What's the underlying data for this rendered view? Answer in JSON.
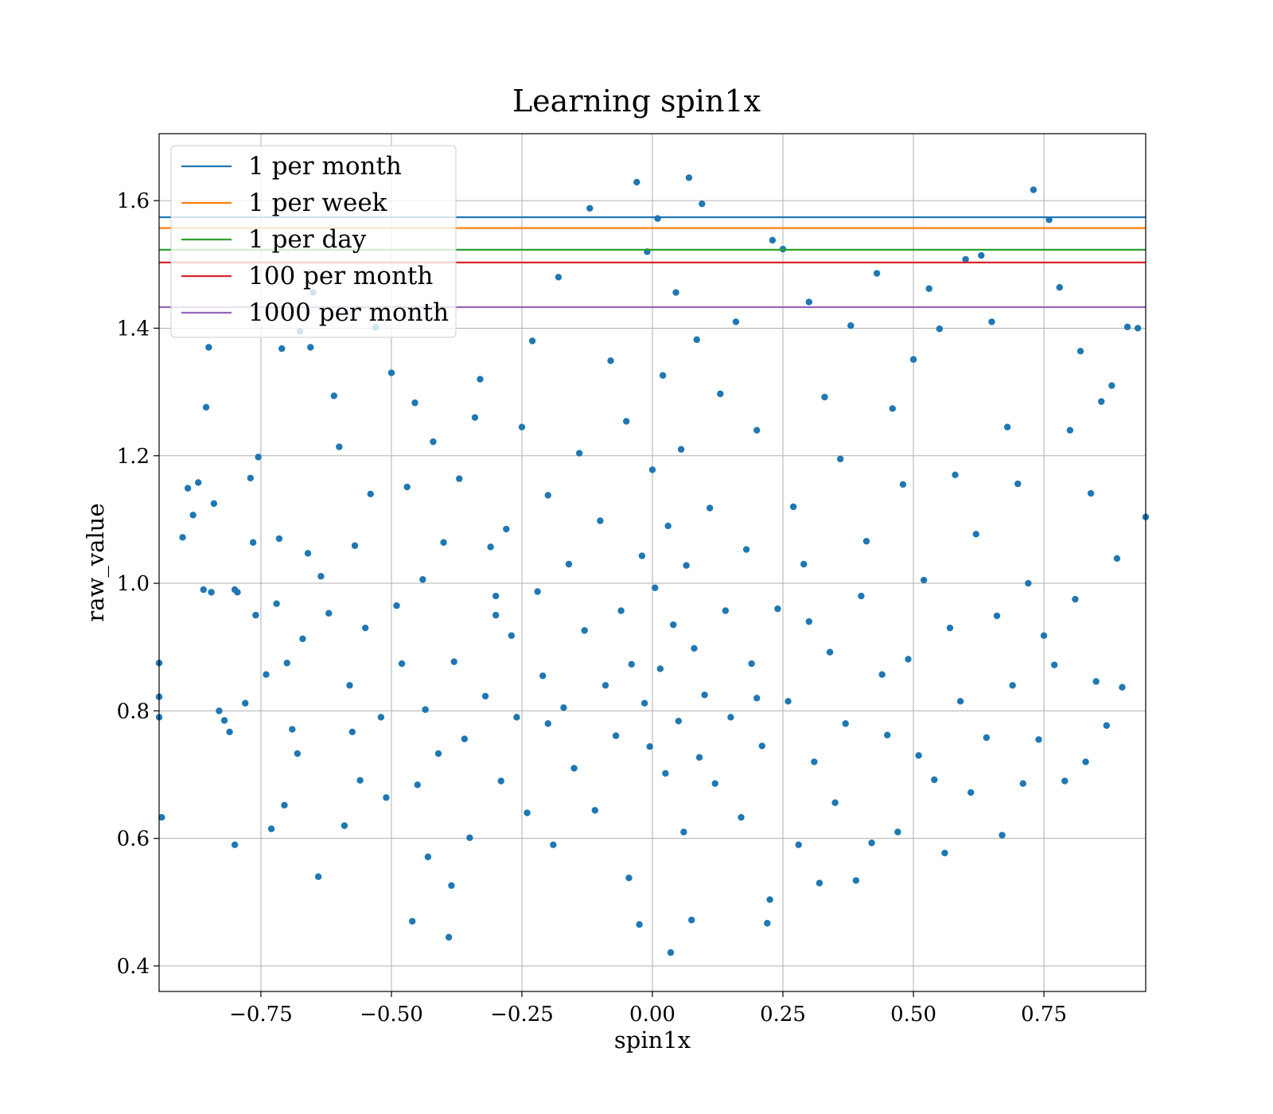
{
  "chart_data": {
    "type": "scatter",
    "title": "Learning spin1x",
    "xlabel": "spin1x",
    "ylabel": "raw_value",
    "xlim": [
      -0.945,
      0.945
    ],
    "ylim": [
      0.36,
      1.705
    ],
    "x_ticks": [
      -0.75,
      -0.5,
      -0.25,
      0.0,
      0.25,
      0.5,
      0.75
    ],
    "x_tick_labels": [
      "−0.75",
      "−0.50",
      "−0.25",
      "0.00",
      "0.25",
      "0.50",
      "0.75"
    ],
    "y_ticks": [
      0.4,
      0.6,
      0.8,
      1.0,
      1.2,
      1.4,
      1.6
    ],
    "y_tick_labels": [
      "0.4",
      "0.6",
      "0.8",
      "1.0",
      "1.2",
      "1.4",
      "1.6"
    ],
    "grid": true,
    "legend_position": "top-left",
    "scatter_color": "#1f77b4",
    "hlines": [
      {
        "name": "1 per month",
        "y": 1.574,
        "color": "#1f77b4"
      },
      {
        "name": "1 per week",
        "y": 1.557,
        "color": "#ff7f0e"
      },
      {
        "name": "1 per day",
        "y": 1.523,
        "color": "#2ca02c"
      },
      {
        "name": "100 per month",
        "y": 1.503,
        "color": "#d62728"
      },
      {
        "name": "1000 per month",
        "y": 1.433,
        "color": "#9467bd"
      }
    ],
    "points": [
      [
        -0.945,
        0.875
      ],
      [
        -0.945,
        0.822
      ],
      [
        -0.945,
        0.79
      ],
      [
        -0.94,
        0.633
      ],
      [
        -0.9,
        1.072
      ],
      [
        -0.89,
        1.149
      ],
      [
        -0.88,
        1.107
      ],
      [
        -0.87,
        1.158
      ],
      [
        -0.86,
        0.99
      ],
      [
        -0.855,
        1.276
      ],
      [
        -0.85,
        1.37
      ],
      [
        -0.845,
        0.986
      ],
      [
        -0.84,
        1.125
      ],
      [
        -0.83,
        0.8
      ],
      [
        -0.82,
        0.785
      ],
      [
        -0.81,
        0.767
      ],
      [
        -0.8,
        0.59
      ],
      [
        -0.795,
        0.986
      ],
      [
        -0.78,
        0.812
      ],
      [
        -0.77,
        1.165
      ],
      [
        -0.765,
        1.064
      ],
      [
        -0.76,
        0.95
      ],
      [
        -0.755,
        1.198
      ],
      [
        -0.74,
        0.857
      ],
      [
        -0.73,
        0.615
      ],
      [
        -0.72,
        0.968
      ],
      [
        -0.715,
        1.07
      ],
      [
        -0.71,
        1.368
      ],
      [
        -0.705,
        0.652
      ],
      [
        -0.7,
        0.875
      ],
      [
        -0.69,
        0.771
      ],
      [
        -0.68,
        0.733
      ],
      [
        -0.675,
        1.395
      ],
      [
        -0.67,
        0.913
      ],
      [
        -0.66,
        1.047
      ],
      [
        -0.655,
        1.37
      ],
      [
        -0.65,
        1.456
      ],
      [
        -0.64,
        0.54
      ],
      [
        -0.635,
        1.011
      ],
      [
        -0.62,
        0.953
      ],
      [
        -0.61,
        1.294
      ],
      [
        -0.6,
        1.214
      ],
      [
        -0.59,
        0.62
      ],
      [
        -0.58,
        0.84
      ],
      [
        -0.575,
        0.767
      ],
      [
        -0.57,
        1.059
      ],
      [
        -0.56,
        0.691
      ],
      [
        -0.55,
        0.93
      ],
      [
        -0.54,
        1.14
      ],
      [
        -0.53,
        1.401
      ],
      [
        -0.52,
        0.79
      ],
      [
        -0.51,
        0.664
      ],
      [
        -0.5,
        1.33
      ],
      [
        -0.49,
        0.965
      ],
      [
        -0.48,
        0.874
      ],
      [
        -0.47,
        1.151
      ],
      [
        -0.46,
        0.47
      ],
      [
        -0.455,
        1.283
      ],
      [
        -0.45,
        0.684
      ],
      [
        -0.44,
        1.006
      ],
      [
        -0.435,
        0.802
      ],
      [
        -0.43,
        0.571
      ],
      [
        -0.42,
        1.222
      ],
      [
        -0.41,
        0.733
      ],
      [
        -0.4,
        1.064
      ],
      [
        -0.39,
        0.445
      ],
      [
        -0.385,
        0.526
      ],
      [
        -0.38,
        0.877
      ],
      [
        -0.37,
        1.164
      ],
      [
        -0.36,
        0.756
      ],
      [
        -0.35,
        0.601
      ],
      [
        -0.34,
        1.26
      ],
      [
        -0.33,
        1.32
      ],
      [
        -0.32,
        0.823
      ],
      [
        -0.31,
        1.057
      ],
      [
        -0.3,
        0.98
      ],
      [
        -0.29,
        0.69
      ],
      [
        -0.28,
        1.085
      ],
      [
        -0.27,
        0.918
      ],
      [
        -0.26,
        0.79
      ],
      [
        -0.25,
        1.245
      ],
      [
        -0.24,
        0.64
      ],
      [
        -0.23,
        1.38
      ],
      [
        -0.22,
        0.987
      ],
      [
        -0.21,
        0.855
      ],
      [
        -0.2,
        1.138
      ],
      [
        -0.19,
        0.59
      ],
      [
        -0.18,
        1.48
      ],
      [
        -0.17,
        0.805
      ],
      [
        -0.16,
        1.03
      ],
      [
        -0.15,
        0.71
      ],
      [
        -0.14,
        1.204
      ],
      [
        -0.13,
        0.926
      ],
      [
        -0.12,
        1.588
      ],
      [
        -0.11,
        0.644
      ],
      [
        -0.1,
        1.098
      ],
      [
        -0.09,
        0.84
      ],
      [
        -0.08,
        1.349
      ],
      [
        -0.07,
        0.761
      ],
      [
        -0.06,
        0.957
      ],
      [
        -0.05,
        1.254
      ],
      [
        -0.045,
        0.538
      ],
      [
        -0.04,
        0.873
      ],
      [
        -0.03,
        1.629
      ],
      [
        -0.025,
        0.465
      ],
      [
        -0.02,
        1.043
      ],
      [
        -0.015,
        0.812
      ],
      [
        -0.01,
        1.52
      ],
      [
        -0.005,
        0.744
      ],
      [
        0.0,
        1.178
      ],
      [
        0.005,
        0.993
      ],
      [
        0.01,
        1.572
      ],
      [
        0.015,
        0.866
      ],
      [
        0.02,
        1.326
      ],
      [
        0.025,
        0.702
      ],
      [
        0.03,
        1.09
      ],
      [
        0.035,
        0.421
      ],
      [
        0.04,
        0.935
      ],
      [
        0.045,
        1.456
      ],
      [
        0.05,
        0.784
      ],
      [
        0.055,
        1.21
      ],
      [
        0.06,
        0.61
      ],
      [
        0.065,
        1.028
      ],
      [
        0.07,
        1.636
      ],
      [
        0.075,
        0.472
      ],
      [
        0.08,
        0.898
      ],
      [
        0.085,
        1.382
      ],
      [
        0.09,
        0.727
      ],
      [
        0.095,
        1.595
      ],
      [
        0.1,
        0.825
      ],
      [
        0.11,
        1.118
      ],
      [
        0.12,
        0.686
      ],
      [
        0.13,
        1.297
      ],
      [
        0.14,
        0.957
      ],
      [
        0.15,
        0.79
      ],
      [
        0.16,
        1.41
      ],
      [
        0.17,
        0.633
      ],
      [
        0.18,
        1.053
      ],
      [
        0.19,
        0.874
      ],
      [
        0.2,
        1.24
      ],
      [
        0.21,
        0.745
      ],
      [
        0.22,
        0.467
      ],
      [
        0.225,
        0.504
      ],
      [
        0.23,
        1.538
      ],
      [
        0.24,
        0.96
      ],
      [
        0.25,
        1.524
      ],
      [
        0.26,
        0.815
      ],
      [
        0.27,
        1.12
      ],
      [
        0.28,
        0.59
      ],
      [
        0.29,
        1.03
      ],
      [
        0.3,
        1.441
      ],
      [
        0.31,
        0.72
      ],
      [
        0.32,
        0.53
      ],
      [
        0.33,
        1.292
      ],
      [
        0.34,
        0.892
      ],
      [
        0.35,
        0.656
      ],
      [
        0.36,
        1.195
      ],
      [
        0.37,
        0.78
      ],
      [
        0.38,
        1.404
      ],
      [
        0.39,
        0.534
      ],
      [
        0.4,
        0.98
      ],
      [
        0.41,
        1.066
      ],
      [
        0.42,
        0.593
      ],
      [
        0.43,
        1.486
      ],
      [
        0.44,
        0.857
      ],
      [
        0.45,
        0.762
      ],
      [
        0.46,
        1.274
      ],
      [
        0.47,
        0.61
      ],
      [
        0.48,
        1.155
      ],
      [
        0.49,
        0.881
      ],
      [
        0.5,
        1.351
      ],
      [
        0.51,
        0.73
      ],
      [
        0.52,
        1.005
      ],
      [
        0.53,
        1.462
      ],
      [
        0.54,
        0.692
      ],
      [
        0.55,
        1.399
      ],
      [
        0.56,
        0.577
      ],
      [
        0.57,
        0.93
      ],
      [
        0.58,
        1.17
      ],
      [
        0.59,
        0.815
      ],
      [
        0.6,
        1.508
      ],
      [
        0.61,
        0.672
      ],
      [
        0.62,
        1.077
      ],
      [
        0.63,
        1.514
      ],
      [
        0.64,
        0.758
      ],
      [
        0.65,
        1.41
      ],
      [
        0.66,
        0.949
      ],
      [
        0.67,
        0.605
      ],
      [
        0.68,
        1.245
      ],
      [
        0.69,
        0.84
      ],
      [
        0.7,
        1.156
      ],
      [
        0.71,
        0.686
      ],
      [
        0.72,
        1.0
      ],
      [
        0.73,
        1.617
      ],
      [
        0.74,
        0.755
      ],
      [
        0.75,
        0.918
      ],
      [
        0.76,
        1.57
      ],
      [
        0.77,
        0.872
      ],
      [
        0.78,
        1.464
      ],
      [
        0.79,
        0.69
      ],
      [
        0.8,
        1.24
      ],
      [
        0.81,
        0.975
      ],
      [
        0.82,
        1.364
      ],
      [
        0.83,
        0.72
      ],
      [
        0.84,
        1.141
      ],
      [
        0.85,
        0.846
      ],
      [
        0.86,
        1.285
      ],
      [
        0.87,
        0.777
      ],
      [
        0.88,
        1.31
      ],
      [
        0.89,
        1.039
      ],
      [
        0.9,
        0.837
      ],
      [
        0.91,
        1.402
      ],
      [
        0.93,
        1.4
      ],
      [
        0.945,
        1.104
      ],
      [
        -0.8,
        0.99
      ],
      [
        -0.3,
        0.95
      ],
      [
        0.3,
        0.94
      ],
      [
        -0.2,
        0.78
      ],
      [
        0.2,
        0.82
      ]
    ]
  }
}
